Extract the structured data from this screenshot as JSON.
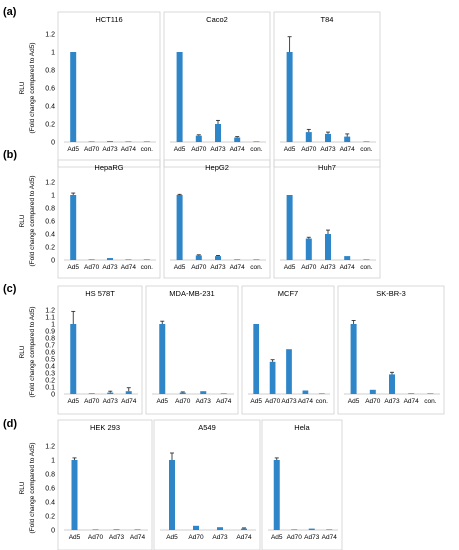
{
  "figure": {
    "y_label_top": "RLU",
    "y_label_bottom": "(Fold change compared to Ad5)"
  },
  "chart_data": [
    {
      "panel": "(a)",
      "type": "bar",
      "title": "HCT116",
      "categories": [
        "Ad5",
        "Ad70",
        "Ad73",
        "Ad74",
        "con."
      ],
      "values": [
        1.0,
        0.0,
        0.01,
        0.0,
        0.0
      ],
      "errors": [
        0.0,
        0.0,
        0.0,
        0.0,
        0.0
      ],
      "ylim": [
        0,
        1.2
      ],
      "yticks": [
        "0",
        "0.2",
        "0.4",
        "0.6",
        "0.8",
        "1",
        "1.2"
      ],
      "show_yticks": true
    },
    {
      "panel": "(a)",
      "type": "bar",
      "title": "Caco2",
      "categories": [
        "Ad5",
        "Ad70",
        "Ad73",
        "Ad74",
        "con."
      ],
      "values": [
        1.0,
        0.07,
        0.2,
        0.05,
        0.0
      ],
      "errors": [
        0.0,
        0.01,
        0.04,
        0.01,
        0.0
      ],
      "ylim": [
        0,
        1.2
      ],
      "show_yticks": false
    },
    {
      "panel": "(a)",
      "type": "bar",
      "title": "T84",
      "categories": [
        "Ad5",
        "Ad70",
        "Ad73",
        "Ad74",
        "con."
      ],
      "values": [
        1.0,
        0.11,
        0.09,
        0.06,
        0.0
      ],
      "errors": [
        0.17,
        0.03,
        0.02,
        0.03,
        0.0
      ],
      "ylim": [
        0,
        1.2
      ],
      "show_yticks": false
    },
    {
      "panel": "(b)",
      "type": "bar",
      "title": "HepaRG",
      "categories": [
        "Ad5",
        "Ad70",
        "Ad73",
        "Ad74",
        "con."
      ],
      "values": [
        1.0,
        0.01,
        0.03,
        0.0,
        0.0
      ],
      "errors": [
        0.03,
        0.0,
        0.0,
        0.0,
        0.0
      ],
      "ylim": [
        0,
        1.2
      ],
      "yticks": [
        "0",
        "0.2",
        "0.4",
        "0.6",
        "0.8",
        "1",
        "1.2"
      ],
      "show_yticks": true
    },
    {
      "panel": "(b)",
      "type": "bar",
      "title": "HepG2",
      "categories": [
        "Ad5",
        "Ad70",
        "Ad73",
        "Ad74",
        "con."
      ],
      "values": [
        1.0,
        0.07,
        0.06,
        0.01,
        0.0
      ],
      "errors": [
        0.01,
        0.01,
        0.01,
        0.0,
        0.0
      ],
      "ylim": [
        0,
        1.2
      ],
      "show_yticks": false
    },
    {
      "panel": "(b)",
      "type": "bar",
      "title": "Huh7",
      "categories": [
        "Ad5",
        "Ad70",
        "Ad73",
        "Ad74",
        "con."
      ],
      "values": [
        1.0,
        0.33,
        0.4,
        0.06,
        0.0
      ],
      "errors": [
        0.0,
        0.02,
        0.06,
        0.0,
        0.0
      ],
      "ylim": [
        0,
        1.2
      ],
      "show_yticks": false
    },
    {
      "panel": "(c)",
      "type": "bar",
      "title": "HS 578T",
      "categories": [
        "Ad5",
        "Ad70",
        "Ad73",
        "Ad74"
      ],
      "values": [
        1.0,
        0.01,
        0.02,
        0.04
      ],
      "errors": [
        0.18,
        0.0,
        0.02,
        0.05
      ],
      "ylim": [
        0,
        1.2
      ],
      "yticks": [
        "0",
        "0.1",
        "0.2",
        "0.3",
        "0.4",
        "0.5",
        "0.6",
        "0.7",
        "0.8",
        "0.9",
        "1",
        "1.1",
        "1.2"
      ],
      "show_yticks": true
    },
    {
      "panel": "(c)",
      "type": "bar",
      "title": "MDA-MB-231",
      "categories": [
        "Ad5",
        "Ad70",
        "Ad73",
        "Ad74"
      ],
      "values": [
        1.0,
        0.02,
        0.04,
        0.0
      ],
      "errors": [
        0.04,
        0.01,
        0.0,
        0.0
      ],
      "ylim": [
        0,
        1.2
      ],
      "show_yticks": false
    },
    {
      "panel": "(c)",
      "type": "bar",
      "title": "MCF7",
      "categories": [
        "Ad5",
        "Ad70",
        "Ad73",
        "Ad74",
        "con."
      ],
      "values": [
        1.0,
        0.46,
        0.64,
        0.05,
        0.0
      ],
      "errors": [
        0.0,
        0.03,
        0.0,
        0.0,
        0.0
      ],
      "ylim": [
        0,
        1.2
      ],
      "show_yticks": false
    },
    {
      "panel": "(c)",
      "type": "bar",
      "title": "SK-BR-3",
      "categories": [
        "Ad5",
        "Ad70",
        "Ad73",
        "Ad74",
        "con."
      ],
      "values": [
        1.0,
        0.06,
        0.28,
        0.01,
        0.0
      ],
      "errors": [
        0.05,
        0.0,
        0.03,
        0.0,
        0.0
      ],
      "ylim": [
        0,
        1.2
      ],
      "show_yticks": false
    },
    {
      "panel": "(d)",
      "type": "bar",
      "title": "HEK 293",
      "categories": [
        "Ad5",
        "Ad70",
        "Ad73",
        "Ad74"
      ],
      "values": [
        1.0,
        0.0,
        0.01,
        0.0
      ],
      "errors": [
        0.03,
        0.0,
        0.0,
        0.0
      ],
      "ylim": [
        0,
        1.2
      ],
      "yticks": [
        "0",
        "0.2",
        "0.4",
        "0.6",
        "0.8",
        "1",
        "1.2"
      ],
      "show_yticks": true
    },
    {
      "panel": "(d)",
      "type": "bar",
      "title": "A549",
      "categories": [
        "Ad5",
        "Ad70",
        "Ad73",
        "Ad74"
      ],
      "values": [
        1.0,
        0.06,
        0.04,
        0.02
      ],
      "errors": [
        0.1,
        0.0,
        0.0,
        0.01
      ],
      "ylim": [
        0,
        1.2
      ],
      "show_yticks": false
    },
    {
      "panel": "(d)",
      "type": "bar",
      "title": "Hela",
      "categories": [
        "Ad5",
        "Ad70",
        "Ad73",
        "Ad74"
      ],
      "values": [
        1.0,
        0.0,
        0.02,
        0.0
      ],
      "errors": [
        0.03,
        0.0,
        0.0,
        0.0
      ],
      "ylim": [
        0,
        1.2
      ],
      "show_yticks": false
    }
  ],
  "colors": {
    "bar": "#2e86c9",
    "error_bar": "#333333",
    "frame": "#d0d0d0"
  }
}
